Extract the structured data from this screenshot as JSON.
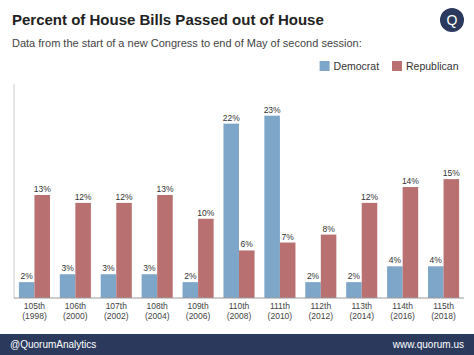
{
  "chart_data": {
    "type": "bar",
    "title": "Percent of House Bills Passed out of House",
    "subtitle": "Data from the start of a new Congress to end of May of second session:",
    "annotations": [
      "Q",
      "@QuorumAnalytics",
      "www.quorum.us"
    ],
    "categories": [
      "105th\n(1998)",
      "106th\n(2000)",
      "107th\n(2002)",
      "108th\n(2004)",
      "109th\n(2006)",
      "110th\n(2008)",
      "111th\n(2010)",
      "112th\n(2012)",
      "113th\n(2014)",
      "114th\n(2016)",
      "115th\n(2018)"
    ],
    "series": [
      {
        "name": "Democrat",
        "color": "#7ea6c8",
        "values": [
          2,
          3,
          3,
          3,
          2,
          22,
          23,
          2,
          2,
          4,
          4
        ],
        "value_labels": [
          "2%",
          "3%",
          "3%",
          "3%",
          "2%",
          "22%",
          "23%",
          "2%",
          "2%",
          "4%",
          "4%"
        ]
      },
      {
        "name": "Republican",
        "color": "#b97070",
        "values": [
          13,
          12,
          12,
          13,
          10,
          6,
          7,
          8,
          12,
          14,
          15
        ],
        "value_labels": [
          "13%",
          "12%",
          "12%",
          "13%",
          "10%",
          "6%",
          "7%",
          "8%",
          "12%",
          "14%",
          "15%"
        ]
      }
    ],
    "ylim": [
      0,
      27
    ],
    "grid": false,
    "legend": "upper right",
    "data_labels": true,
    "tick_labels": "x"
  }
}
